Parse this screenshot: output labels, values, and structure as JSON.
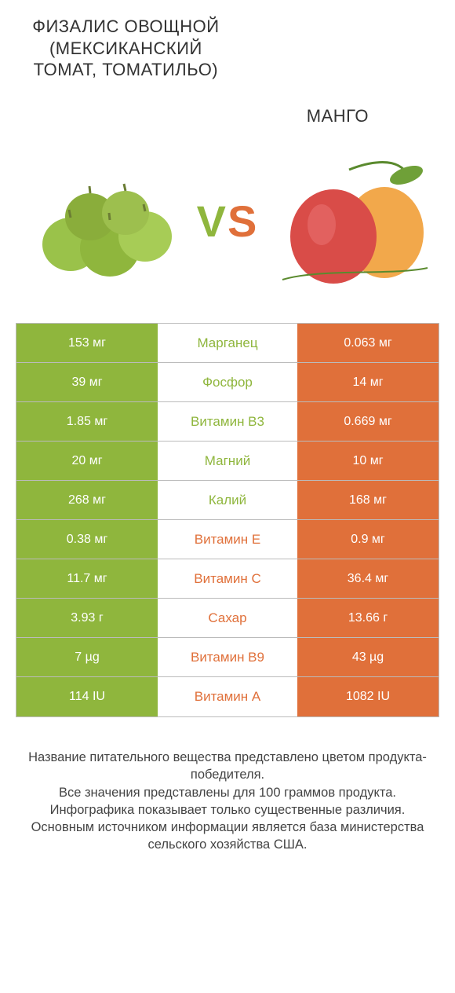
{
  "colors": {
    "left": "#8fb63d",
    "right": "#e0703a",
    "row_border": "#bbbbbb",
    "text_dark": "#333333"
  },
  "titles": {
    "left": "Физалис овощной (мексиканский томат, томатильо)",
    "right": "Mанго"
  },
  "vs_label": "VS",
  "table": {
    "rows": [
      {
        "left": "153 мг",
        "label": "Марганец",
        "right": "0.063 мг",
        "winner": "left"
      },
      {
        "left": "39 мг",
        "label": "Фосфор",
        "right": "14 мг",
        "winner": "left"
      },
      {
        "left": "1.85 мг",
        "label": "Витамин B3",
        "right": "0.669 мг",
        "winner": "left"
      },
      {
        "left": "20 мг",
        "label": "Магний",
        "right": "10 мг",
        "winner": "left"
      },
      {
        "left": "268 мг",
        "label": "Калий",
        "right": "168 мг",
        "winner": "left"
      },
      {
        "left": "0.38 мг",
        "label": "Витамин E",
        "right": "0.9 мг",
        "winner": "right"
      },
      {
        "left": "11.7 мг",
        "label": "Витамин C",
        "right": "36.4 мг",
        "winner": "right"
      },
      {
        "left": "3.93 г",
        "label": "Сахар",
        "right": "13.66 г",
        "winner": "right"
      },
      {
        "left": "7 µg",
        "label": "Витамин B9",
        "right": "43 µg",
        "winner": "right"
      },
      {
        "left": "114 IU",
        "label": "Витамин A",
        "right": "1082 IU",
        "winner": "right"
      }
    ]
  },
  "footer": {
    "line1": "Название питательного вещества представлено цветом продукта-победителя.",
    "line2": "Все значения представлены для 100 граммов продукта.",
    "line3": "Инфографика показывает только существенные различия.",
    "line4": "Основным источником информации является база министерства сельского хозяйства США."
  }
}
